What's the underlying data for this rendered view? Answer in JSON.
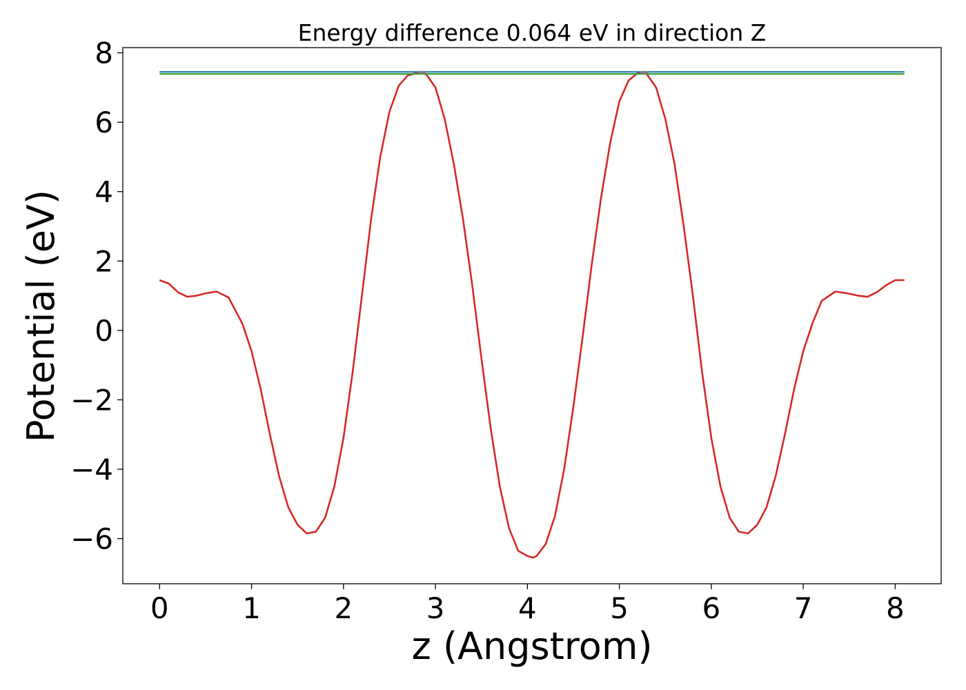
{
  "chart_data": {
    "type": "line",
    "title": "Energy difference 0.064 eV in direction Z",
    "xlabel": "z (Angstrom)",
    "ylabel": "Potential (eV)",
    "xlim": [
      -0.4,
      8.5
    ],
    "ylim": [
      -7.3,
      8.15
    ],
    "xticks": [
      0,
      1,
      2,
      3,
      4,
      5,
      6,
      7,
      8
    ],
    "xtick_labels": [
      "0",
      "1",
      "2",
      "3",
      "4",
      "5",
      "6",
      "7",
      "8"
    ],
    "yticks": [
      -6,
      -4,
      -2,
      0,
      2,
      4,
      6,
      8
    ],
    "ytick_labels": [
      "−6",
      "−4",
      "−2",
      "0",
      "2",
      "4",
      "6",
      "8"
    ],
    "grid": false,
    "series": [
      {
        "color": "#d62728",
        "x": [
          0,
          0.1,
          0.2,
          0.3,
          0.4,
          0.5,
          0.62,
          0.75,
          0.9,
          1.0,
          1.1,
          1.2,
          1.3,
          1.4,
          1.5,
          1.6,
          1.7,
          1.8,
          1.9,
          2.0,
          2.1,
          2.2,
          2.3,
          2.4,
          2.5,
          2.6,
          2.7,
          2.8,
          2.85,
          2.9,
          3.0,
          3.1,
          3.2,
          3.3,
          3.4,
          3.5,
          3.6,
          3.7,
          3.8,
          3.9,
          4.0,
          4.06,
          4.1,
          4.2,
          4.3,
          4.4,
          4.5,
          4.6,
          4.7,
          4.8,
          4.9,
          5.0,
          5.1,
          5.2,
          5.27,
          5.3,
          5.4,
          5.5,
          5.6,
          5.7,
          5.8,
          5.9,
          6.0,
          6.1,
          6.2,
          6.3,
          6.4,
          6.5,
          6.6,
          6.7,
          6.8,
          6.9,
          7.0,
          7.1,
          7.2,
          7.35,
          7.48,
          7.6,
          7.7,
          7.8,
          7.9,
          8.0,
          8.1
        ],
        "y": [
          1.45,
          1.35,
          1.1,
          0.97,
          1.0,
          1.07,
          1.12,
          0.95,
          0.2,
          -0.6,
          -1.7,
          -3.0,
          -4.2,
          -5.1,
          -5.6,
          -5.85,
          -5.8,
          -5.4,
          -4.5,
          -3.1,
          -1.2,
          1.0,
          3.2,
          5.0,
          6.3,
          7.05,
          7.35,
          7.42,
          7.42,
          7.38,
          7.0,
          6.1,
          4.8,
          3.2,
          1.3,
          -0.8,
          -2.8,
          -4.5,
          -5.7,
          -6.35,
          -6.5,
          -6.55,
          -6.5,
          -6.15,
          -5.35,
          -4.0,
          -2.2,
          -0.2,
          1.9,
          3.8,
          5.4,
          6.6,
          7.2,
          7.42,
          7.42,
          7.38,
          7.0,
          6.1,
          4.8,
          3.0,
          1.0,
          -1.2,
          -3.1,
          -4.5,
          -5.4,
          -5.8,
          -5.85,
          -5.6,
          -5.1,
          -4.2,
          -3.0,
          -1.7,
          -0.6,
          0.2,
          0.85,
          1.12,
          1.07,
          1.0,
          0.97,
          1.1,
          1.3,
          1.45,
          1.45
        ]
      },
      {
        "color": "#1f77b4",
        "x": [
          0,
          8.1
        ],
        "y": [
          7.45,
          7.45
        ]
      },
      {
        "color": "#2ca02c",
        "x": [
          0,
          8.1
        ],
        "y": [
          7.39,
          7.39
        ]
      }
    ],
    "markers": {
      "color": "#7f7f7f",
      "x": [
        2.85,
        5.27
      ],
      "y": [
        7.43,
        7.43
      ]
    }
  }
}
